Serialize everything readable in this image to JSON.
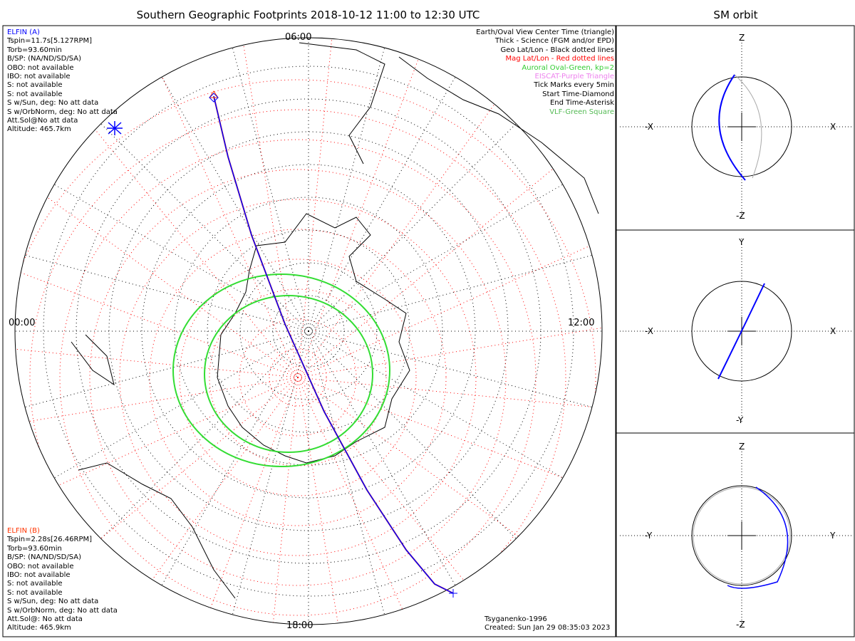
{
  "title": "Southern Geographic Footprints 2018-10-12 11:00 to 12:30 UTC",
  "sm_title": "SM orbit",
  "elfin_a": {
    "name": "ELFIN (A)",
    "lines": [
      "Tspin=11.7s[5.127RPM]",
      "Torb=93.60min",
      "B/SP: (NA/ND/SD/SA)",
      "OBO: not available",
      "IBO: not available",
      "S: not available",
      "S: not available",
      "S w/Sun, deg: No att data",
      "S w/OrbNorm, deg: No att data",
      "Att.Sol@No att data",
      "Altitude: 465.7km"
    ]
  },
  "elfin_b": {
    "name": "ELFIN (B)",
    "lines": [
      "Tspin=2.28s[26.46RPM]",
      "Torb=93.60min",
      "B/SP: (NA/ND/SD/SA)",
      "OBO: not available",
      "IBO: not available",
      "S: not available",
      "S: not available",
      "S w/Sun, deg: No att data",
      "S w/OrbNorm, deg: No att data",
      "Att.Sol@: No att data",
      "Altitude: 465.9km"
    ]
  },
  "legend": [
    {
      "text": "Earth/Oval View Center Time (triangle)",
      "color": "#000000"
    },
    {
      "text": "Thick - Science (FGM and/or EPD)",
      "color": "#000000"
    },
    {
      "text": "Geo Lat/Lon - Black dotted lines",
      "color": "#000000"
    },
    {
      "text": "Mag Lat/Lon - Red dotted lines",
      "color": "#ff0000"
    },
    {
      "text": "Auroral Oval-Green, kp=2",
      "color": "#33cc33"
    },
    {
      "text": "EISCAT-Purple Triangle",
      "color": "#ee82ee"
    },
    {
      "text": "Tick Marks every 5min",
      "color": "#000000"
    },
    {
      "text": "Start Time-Diamond",
      "color": "#000000"
    },
    {
      "text": "End Time-Asterisk",
      "color": "#000000"
    },
    {
      "text": "VLF-Green Square",
      "color": "#55bb55"
    }
  ],
  "time_labels": {
    "top": "06:00",
    "left": "00:00",
    "right": "12:00",
    "bottom": "18:00"
  },
  "footer": {
    "model": "Tsyganenko-1996",
    "created": "Created: Sun Jan 29 08:35:03 2023"
  },
  "panels": [
    {
      "top": "Z",
      "bottom": "-Z",
      "left": "-X",
      "right": "X"
    },
    {
      "top": "Y",
      "bottom": "-Y",
      "left": "-X",
      "right": "X"
    },
    {
      "top": "Z",
      "bottom": "-Z",
      "left": "-Y",
      "right": "Y"
    }
  ],
  "colors": {
    "elfin_a": "#0000ff",
    "elfin_b": "#ff3300",
    "oval": "#33dd33"
  }
}
